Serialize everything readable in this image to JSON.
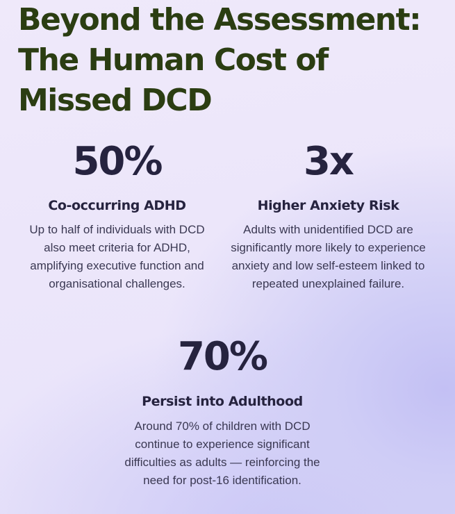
{
  "title": "Beyond the Assessment: The Human Cost of Missed DCD",
  "stats": [
    {
      "value": "50%",
      "heading": "Co-occurring ADHD",
      "description": "Up to half of individuals with DCD also meet criteria for ADHD, amplifying executive function and organisational challenges."
    },
    {
      "value": "3x",
      "heading": "Higher Anxiety Risk",
      "description": "Adults with unidentified DCD are significantly more likely to experience anxiety and low self-esteem linked to repeated unexplained failure."
    },
    {
      "value": "70%",
      "heading": "Persist into Adulthood",
      "description": "Around 70% of children with DCD continue to experience significant difficulties as adults — reinforcing the need for post-16 identification."
    }
  ],
  "colors": {
    "title": "#2b3d12",
    "stat_text": "#26233f",
    "body_text": "#3a3852",
    "background_light": "#efe9fa",
    "background_accent": "#c3c0f4"
  }
}
